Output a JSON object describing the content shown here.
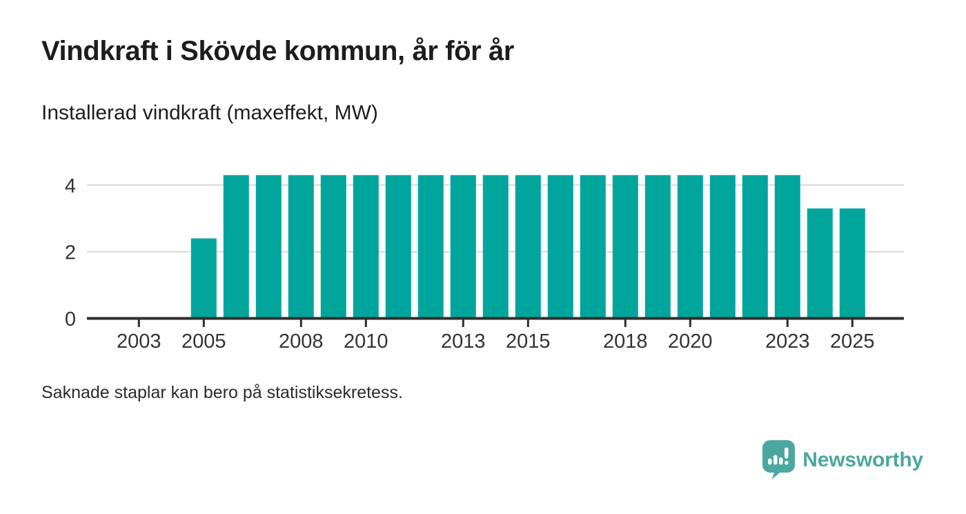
{
  "header": {
    "title": "Vindkraft i Skövde kommun, år för år",
    "subtitle": "Installerad vindkraft (maxeffekt, MW)"
  },
  "footer": {
    "note": "Saknade staplar kan bero på statistiksekretess.",
    "brand": "Newsworthy"
  },
  "colors": {
    "bar": "#00a69b",
    "axis": "#2e2e2e",
    "tick_label": "#333333",
    "grid": "#d9d9d9",
    "brand": "#4ca7a0",
    "text": "#1d1d1d"
  },
  "chart_data": {
    "type": "bar",
    "title": "Vindkraft i Skövde kommun, år för år",
    "subtitle": "Installerad vindkraft (maxeffekt, MW)",
    "unit": "MW",
    "x": [
      2002,
      2003,
      2004,
      2005,
      2006,
      2007,
      2008,
      2009,
      2010,
      2011,
      2012,
      2013,
      2014,
      2015,
      2016,
      2017,
      2018,
      2019,
      2020,
      2021,
      2022,
      2023,
      2024,
      2025
    ],
    "values": [
      null,
      null,
      null,
      2.4,
      4.3,
      4.3,
      4.3,
      4.3,
      4.3,
      4.3,
      4.3,
      4.3,
      4.3,
      4.3,
      4.3,
      4.3,
      4.3,
      4.3,
      4.3,
      4.3,
      4.3,
      4.3,
      3.3,
      3.3
    ],
    "x_ticks": [
      2003,
      2005,
      2008,
      2010,
      2013,
      2015,
      2018,
      2020,
      2023,
      2025
    ],
    "y_ticks": [
      0,
      2,
      4
    ],
    "ylim": [
      0,
      4.3
    ],
    "xlim": [
      2001.5,
      2026.5
    ],
    "grid": "horizontal-only",
    "legend": "none",
    "note": "Saknade staplar kan bero på statistiksekretess."
  }
}
